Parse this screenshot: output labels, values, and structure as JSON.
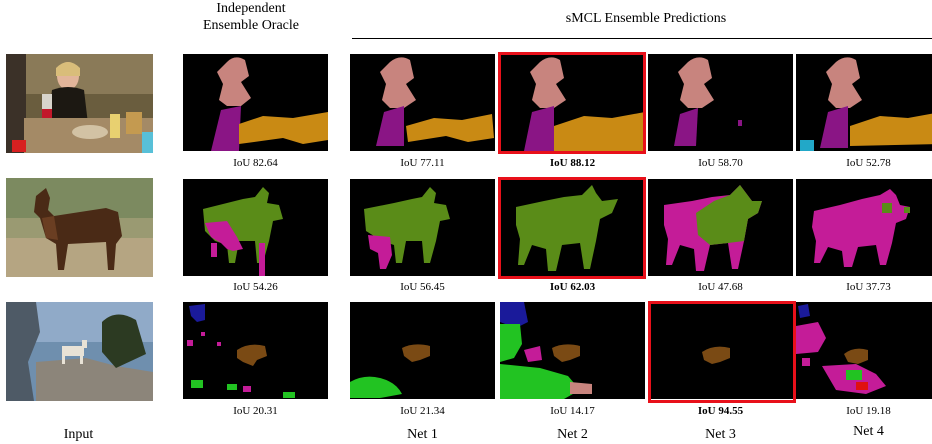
{
  "headers": {
    "oracle_line1": "Independent",
    "oracle_line2": "Ensemble Oracle",
    "smcl": "sMCL Ensemble Predictions"
  },
  "rows": [
    {
      "name": "person-table",
      "scores": {
        "oracle": "IoU 82.64",
        "net1": "IoU 77.11",
        "net2": "IoU 88.12",
        "net3": "IoU 58.70",
        "net4": "IoU 52.78"
      },
      "best": "net2"
    },
    {
      "name": "cow",
      "scores": {
        "oracle": "IoU 54.26",
        "net1": "IoU 56.45",
        "net2": "IoU 62.03",
        "net3": "IoU 47.68",
        "net4": "IoU 37.73"
      },
      "best": "net2"
    },
    {
      "name": "goat-rocks",
      "scores": {
        "oracle": "IoU 20.31",
        "net1": "IoU 21.34",
        "net2": "IoU 14.17",
        "net3": "IoU 94.55",
        "net4": "IoU 19.18"
      },
      "best": "net3"
    }
  ],
  "columns": {
    "input": "Input",
    "net1": "Net 1",
    "net2": "Net 2",
    "net3": "Net 3",
    "net4": "Net 4"
  },
  "colors": {
    "background": "#000000",
    "person": "#c8847e",
    "bottle": "#8a1585",
    "table": "#c98a14",
    "cow": "#5a8c18",
    "cow_alt": "#c41c98",
    "goat": "#7a4a14",
    "plant": "#22c322",
    "highlight": "#e8101a"
  }
}
